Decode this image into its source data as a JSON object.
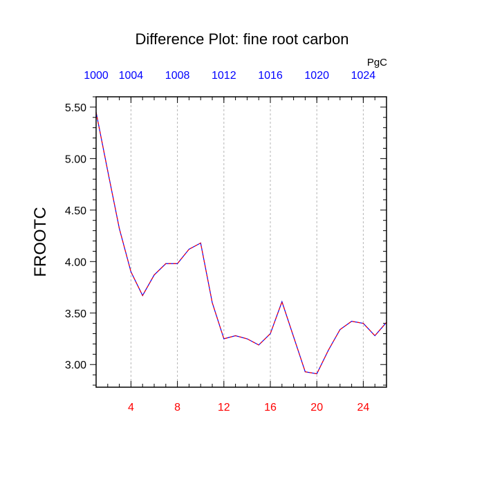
{
  "chart_data": {
    "type": "line",
    "title": "Difference Plot: fine root carbon",
    "ylabel": "FROOTC",
    "units": "PgC",
    "x": [
      1,
      2,
      3,
      4,
      5,
      6,
      7,
      8,
      9,
      10,
      11,
      12,
      13,
      14,
      15,
      16,
      17,
      18,
      19,
      20,
      21,
      22,
      23,
      24,
      25,
      26
    ],
    "series": [
      {
        "values": [
          5.45,
          4.88,
          4.32,
          3.9,
          3.67,
          3.87,
          3.98,
          3.98,
          4.12,
          4.18,
          3.6,
          3.25,
          3.28,
          3.25,
          3.19,
          3.3,
          3.61,
          3.27,
          2.93,
          2.91,
          3.14,
          3.34,
          3.42,
          3.4,
          3.28,
          3.41
        ],
        "color_primary": "#0000ff",
        "color_secondary": "#ff0000",
        "dash": "dashed"
      }
    ],
    "xlim": [
      1,
      26
    ],
    "ylim": [
      2.78,
      5.6
    ],
    "bottom_axis": {
      "ticks": [
        4,
        8,
        12,
        16,
        20,
        24
      ],
      "tick_labels": [
        "4",
        "8",
        "12",
        "16",
        "20",
        "24"
      ],
      "color": "#ff0000"
    },
    "top_axis": {
      "ticks": [
        0,
        4,
        8,
        12,
        16,
        20,
        24
      ],
      "tick_labels": [
        "1000",
        "1004",
        "1008",
        "1012",
        "1016",
        "1020",
        "1024"
      ],
      "color": "#0000ff"
    },
    "y_ticks": [
      3.0,
      3.5,
      4.0,
      4.5,
      5.0,
      5.5
    ],
    "y_tick_labels": [
      "3.00",
      "3.50",
      "4.00",
      "4.50",
      "5.00",
      "5.50"
    ],
    "grid": "vertical-dashed",
    "legend": "none"
  }
}
